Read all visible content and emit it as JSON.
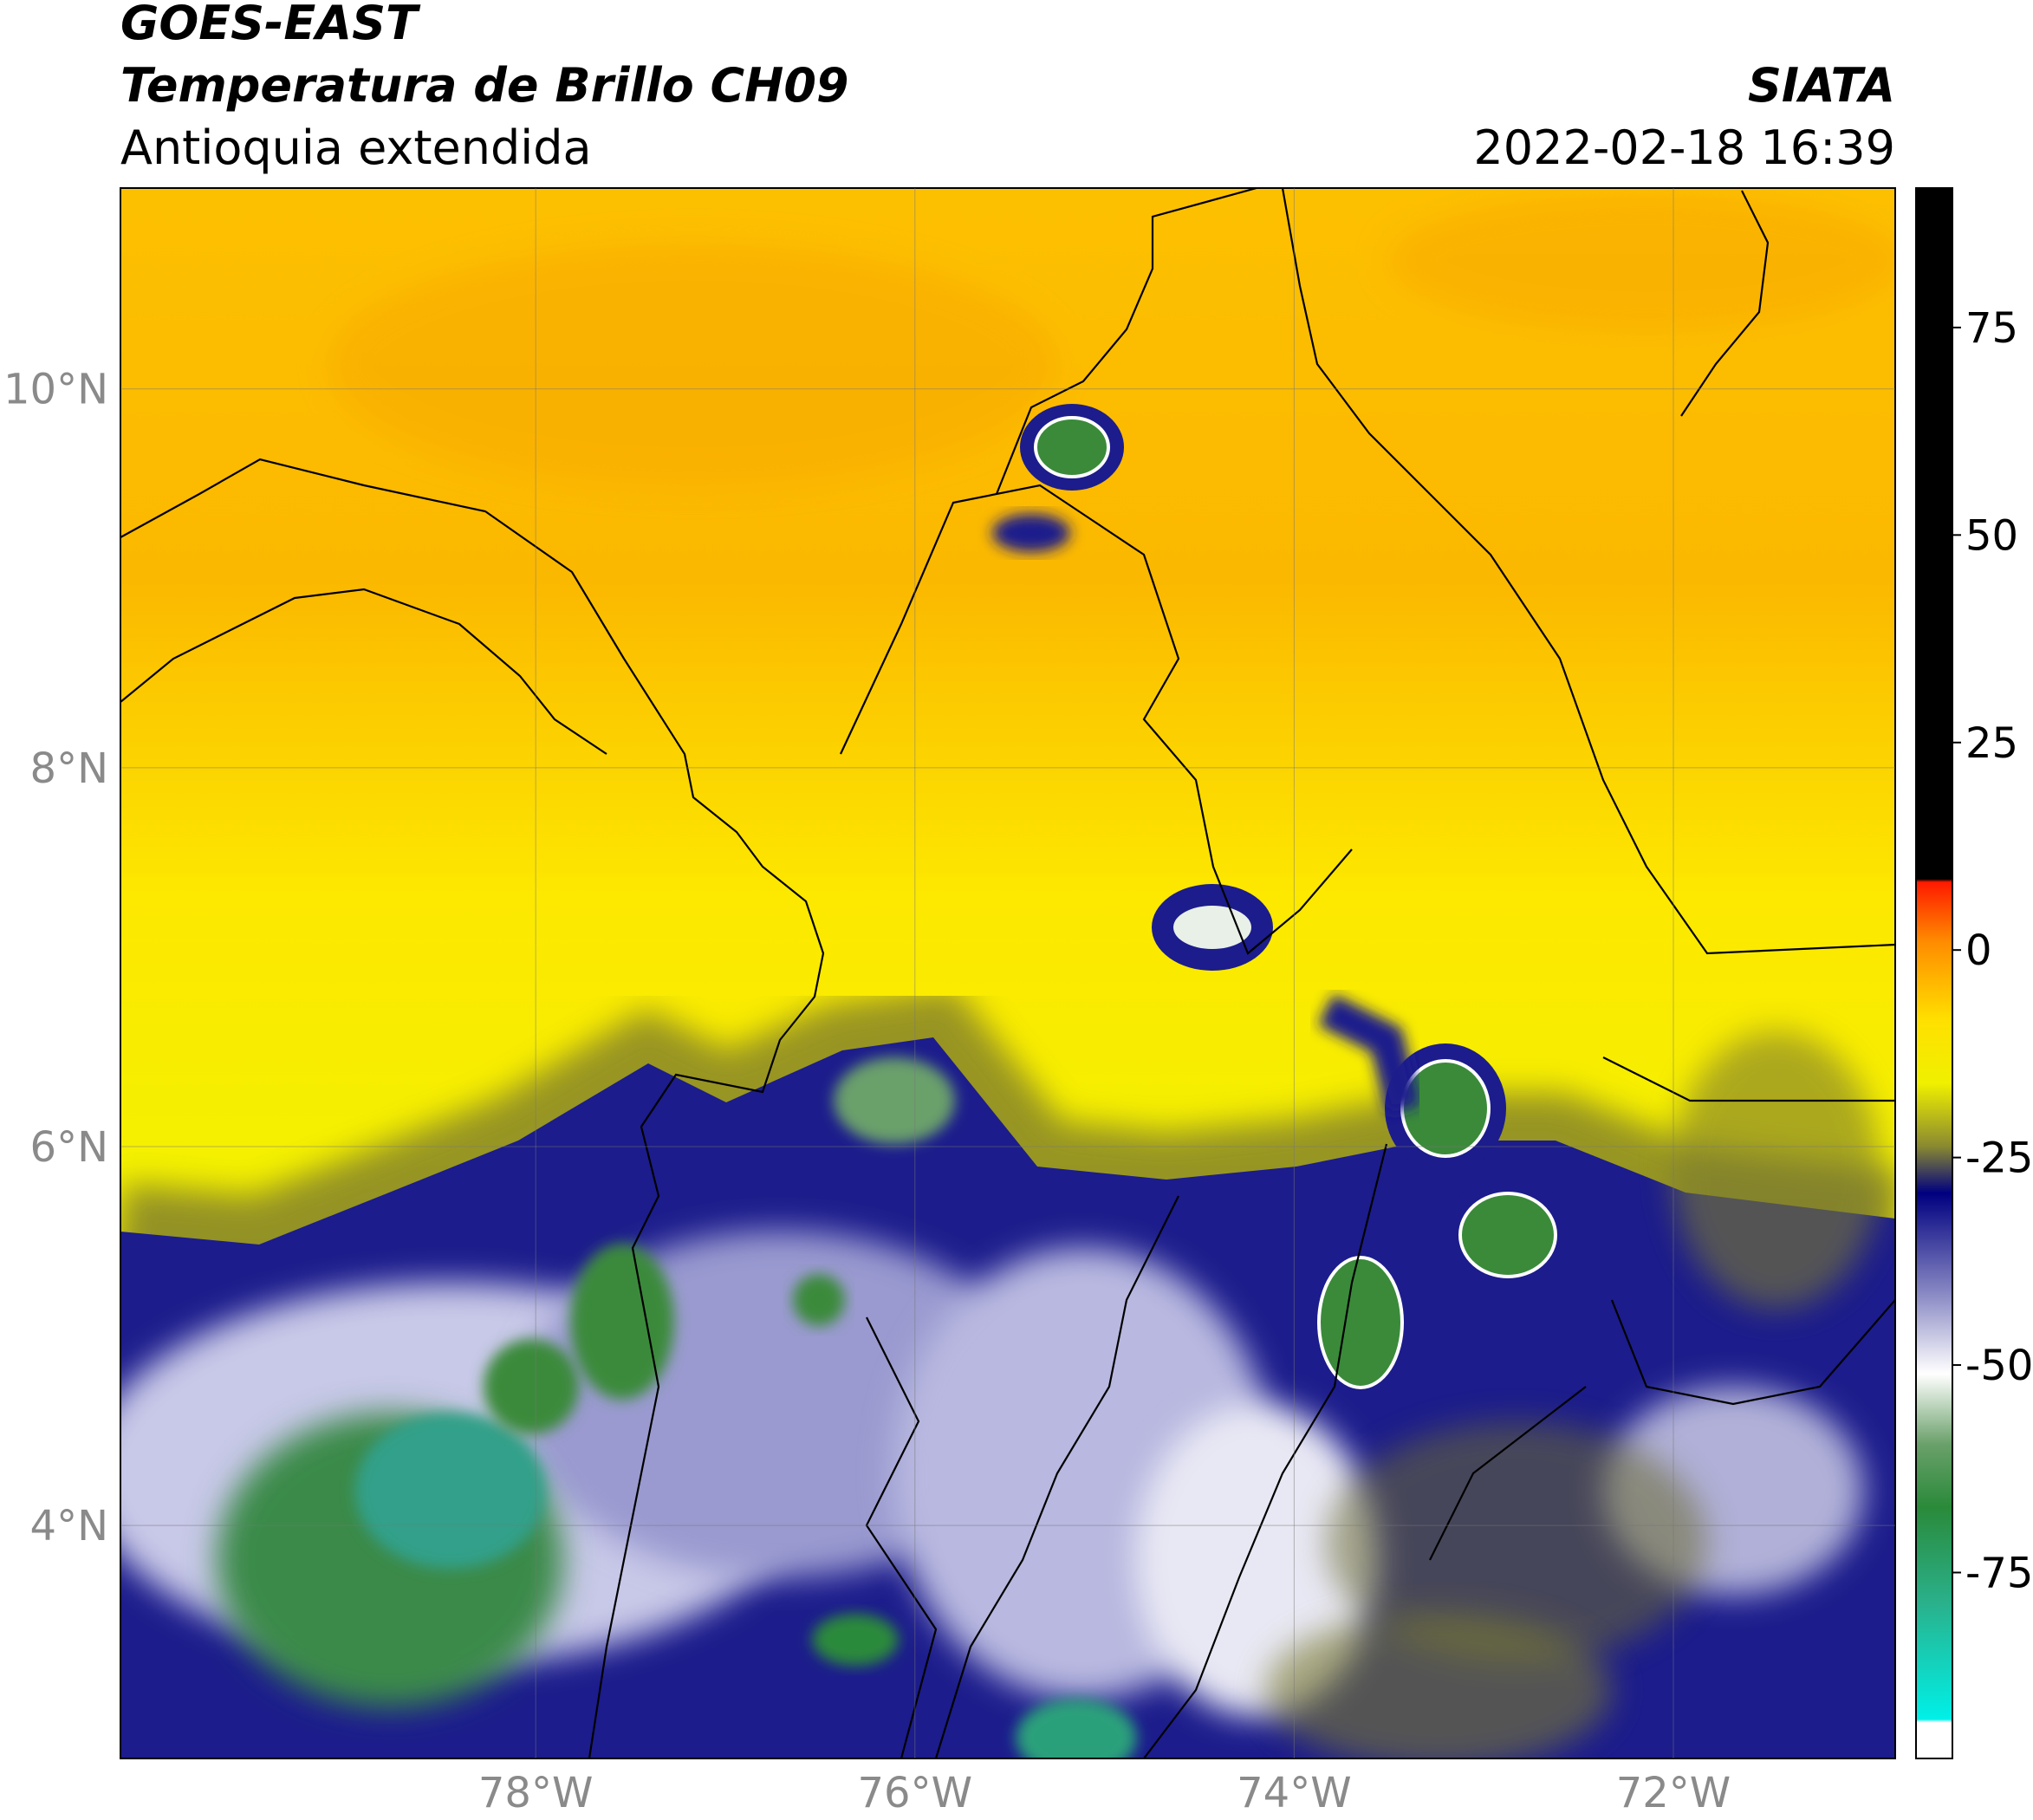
{
  "header": {
    "title": "GOES-EAST",
    "subtitle": "Temperatura de Brillo CH09",
    "region": "Antioquia extendida",
    "source": "SIATA",
    "datetime": "2022-02-18 16:39"
  },
  "map": {
    "lonlim": [
      -80.19,
      -70.83
    ],
    "latlim": [
      2.77,
      11.06
    ],
    "lonticks": [
      {
        "value": -78,
        "label": "78°W"
      },
      {
        "value": -76,
        "label": "76°W"
      },
      {
        "value": -74,
        "label": "74°W"
      },
      {
        "value": -72,
        "label": "72°W"
      }
    ],
    "latticks": [
      {
        "value": 4,
        "label": "4°N"
      },
      {
        "value": 6,
        "label": "6°N"
      },
      {
        "value": 8,
        "label": "8°N"
      },
      {
        "value": 10,
        "label": "10°N"
      }
    ],
    "grid": true
  },
  "colorbar": {
    "lim": [
      -97.4,
      91.8
    ],
    "ticks": [
      -75,
      -50,
      -25,
      0,
      25,
      50,
      75
    ]
  }
}
